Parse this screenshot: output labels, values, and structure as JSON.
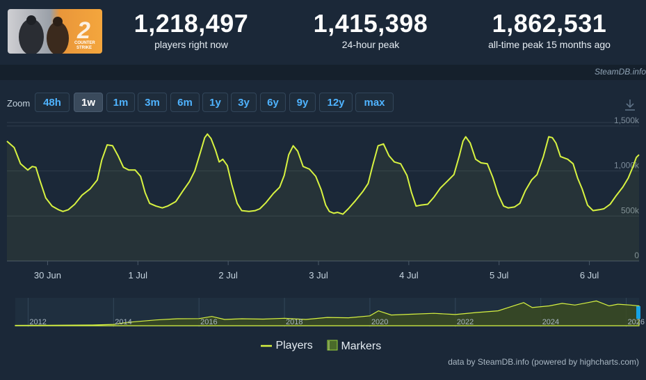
{
  "header": {
    "game_art_label": "COUNTER STRIKE 2",
    "stats": [
      {
        "value": "1,218,497",
        "label": "players right now"
      },
      {
        "value": "1,415,398",
        "label": "24-hour peak"
      },
      {
        "value": "1,862,531",
        "label": "all-time peak 15 months ago"
      }
    ]
  },
  "credit_top": "SteamDB.info",
  "zoom": {
    "label": "Zoom",
    "options": [
      "48h",
      "1w",
      "1m",
      "3m",
      "6m",
      "1y",
      "3y",
      "6y",
      "9y",
      "12y",
      "max"
    ],
    "active": "1w"
  },
  "legend": {
    "players": "Players",
    "markers": "Markers"
  },
  "footer": "data by SteamDB.info (powered by highcharts.com)",
  "colors": {
    "line": "#d8f341",
    "background": "#1b2838",
    "accent": "#4fb3ff"
  },
  "chart_data": [
    {
      "type": "line",
      "series": [
        {
          "name": "Players",
          "color": "#d8f341"
        }
      ],
      "x_ticks": [
        "30 Jun",
        "1 Jul",
        "2 Jul",
        "3 Jul",
        "4 Jul",
        "5 Jul",
        "6 Jul"
      ],
      "x_range_days": [
        -0.45,
        6.55
      ],
      "y_ticks": [
        "0",
        "500k",
        "1,000k",
        "1,500k"
      ],
      "y_tick_values": [
        0,
        500,
        1000,
        1500
      ],
      "ylim": [
        0,
        1600
      ],
      "y_unit": "thousands of players",
      "points": [
        [
          -0.45,
          1330
        ],
        [
          -0.37,
          1260
        ],
        [
          -0.3,
          1080
        ],
        [
          -0.22,
          1010
        ],
        [
          -0.17,
          1050
        ],
        [
          -0.13,
          1040
        ],
        [
          -0.08,
          880
        ],
        [
          -0.02,
          700
        ],
        [
          0.05,
          610
        ],
        [
          0.12,
          570
        ],
        [
          0.17,
          550
        ],
        [
          0.23,
          570
        ],
        [
          0.3,
          630
        ],
        [
          0.38,
          730
        ],
        [
          0.47,
          800
        ],
        [
          0.55,
          900
        ],
        [
          0.6,
          1120
        ],
        [
          0.66,
          1290
        ],
        [
          0.72,
          1280
        ],
        [
          0.78,
          1170
        ],
        [
          0.84,
          1040
        ],
        [
          0.9,
          1010
        ],
        [
          0.97,
          1010
        ],
        [
          1.03,
          940
        ],
        [
          1.08,
          760
        ],
        [
          1.13,
          640
        ],
        [
          1.2,
          610
        ],
        [
          1.27,
          590
        ],
        [
          1.33,
          610
        ],
        [
          1.42,
          660
        ],
        [
          1.5,
          780
        ],
        [
          1.57,
          880
        ],
        [
          1.63,
          1000
        ],
        [
          1.69,
          1200
        ],
        [
          1.74,
          1370
        ],
        [
          1.77,
          1410
        ],
        [
          1.81,
          1360
        ],
        [
          1.86,
          1230
        ],
        [
          1.9,
          1100
        ],
        [
          1.94,
          1130
        ],
        [
          1.99,
          1060
        ],
        [
          2.04,
          850
        ],
        [
          2.1,
          640
        ],
        [
          2.15,
          560
        ],
        [
          2.23,
          550
        ],
        [
          2.3,
          560
        ],
        [
          2.35,
          580
        ],
        [
          2.42,
          650
        ],
        [
          2.5,
          750
        ],
        [
          2.57,
          820
        ],
        [
          2.62,
          950
        ],
        [
          2.67,
          1180
        ],
        [
          2.72,
          1280
        ],
        [
          2.77,
          1220
        ],
        [
          2.83,
          1050
        ],
        [
          2.9,
          1020
        ],
        [
          2.97,
          940
        ],
        [
          3.03,
          790
        ],
        [
          3.08,
          620
        ],
        [
          3.12,
          550
        ],
        [
          3.17,
          530
        ],
        [
          3.21,
          540
        ],
        [
          3.27,
          520
        ],
        [
          3.33,
          580
        ],
        [
          3.41,
          670
        ],
        [
          3.49,
          770
        ],
        [
          3.55,
          860
        ],
        [
          3.6,
          1060
        ],
        [
          3.66,
          1280
        ],
        [
          3.72,
          1300
        ],
        [
          3.78,
          1170
        ],
        [
          3.84,
          1100
        ],
        [
          3.91,
          1080
        ],
        [
          3.98,
          950
        ],
        [
          4.03,
          760
        ],
        [
          4.08,
          610
        ],
        [
          4.13,
          620
        ],
        [
          4.21,
          630
        ],
        [
          4.28,
          710
        ],
        [
          4.35,
          810
        ],
        [
          4.43,
          890
        ],
        [
          4.5,
          960
        ],
        [
          4.56,
          1170
        ],
        [
          4.6,
          1330
        ],
        [
          4.63,
          1380
        ],
        [
          4.68,
          1310
        ],
        [
          4.74,
          1130
        ],
        [
          4.8,
          1090
        ],
        [
          4.87,
          1080
        ],
        [
          4.93,
          930
        ],
        [
          4.99,
          740
        ],
        [
          5.05,
          610
        ],
        [
          5.1,
          590
        ],
        [
          5.17,
          600
        ],
        [
          5.23,
          640
        ],
        [
          5.29,
          780
        ],
        [
          5.36,
          900
        ],
        [
          5.42,
          960
        ],
        [
          5.49,
          1160
        ],
        [
          5.55,
          1380
        ],
        [
          5.59,
          1370
        ],
        [
          5.63,
          1310
        ],
        [
          5.68,
          1160
        ],
        [
          5.76,
          1130
        ],
        [
          5.82,
          1080
        ],
        [
          5.87,
          920
        ],
        [
          5.92,
          800
        ],
        [
          5.98,
          620
        ],
        [
          6.04,
          560
        ],
        [
          6.11,
          570
        ],
        [
          6.16,
          580
        ],
        [
          6.23,
          630
        ],
        [
          6.3,
          730
        ],
        [
          6.37,
          820
        ],
        [
          6.43,
          920
        ],
        [
          6.48,
          1040
        ],
        [
          6.52,
          1150
        ],
        [
          6.55,
          1180
        ]
      ]
    },
    {
      "type": "area",
      "role": "navigator",
      "x_ticks": [
        "2012",
        "2014",
        "2016",
        "2018",
        "2020",
        "2022",
        "2024",
        "2026"
      ],
      "xlim": [
        2011.7,
        2026.3
      ],
      "points": [
        [
          2011.7,
          20
        ],
        [
          2012.5,
          25
        ],
        [
          2013.5,
          40
        ],
        [
          2014.0,
          80
        ],
        [
          2014.3,
          200
        ],
        [
          2015.0,
          350
        ],
        [
          2015.5,
          420
        ],
        [
          2016.0,
          430
        ],
        [
          2016.3,
          560
        ],
        [
          2016.6,
          380
        ],
        [
          2017.0,
          420
        ],
        [
          2017.5,
          400
        ],
        [
          2018.0,
          450
        ],
        [
          2018.5,
          380
        ],
        [
          2019.0,
          500
        ],
        [
          2019.5,
          480
        ],
        [
          2020.0,
          600
        ],
        [
          2020.2,
          900
        ],
        [
          2020.5,
          650
        ],
        [
          2021.0,
          700
        ],
        [
          2021.5,
          750
        ],
        [
          2022.0,
          680
        ],
        [
          2022.5,
          800
        ],
        [
          2023.0,
          900
        ],
        [
          2023.3,
          1150
        ],
        [
          2023.6,
          1400
        ],
        [
          2023.8,
          1100
        ],
        [
          2024.2,
          1200
        ],
        [
          2024.5,
          1350
        ],
        [
          2024.8,
          1250
        ],
        [
          2025.1,
          1400
        ],
        [
          2025.3,
          1500
        ],
        [
          2025.6,
          1200
        ],
        [
          2025.8,
          1300
        ],
        [
          2026.1,
          1250
        ],
        [
          2026.3,
          1200
        ]
      ]
    }
  ]
}
